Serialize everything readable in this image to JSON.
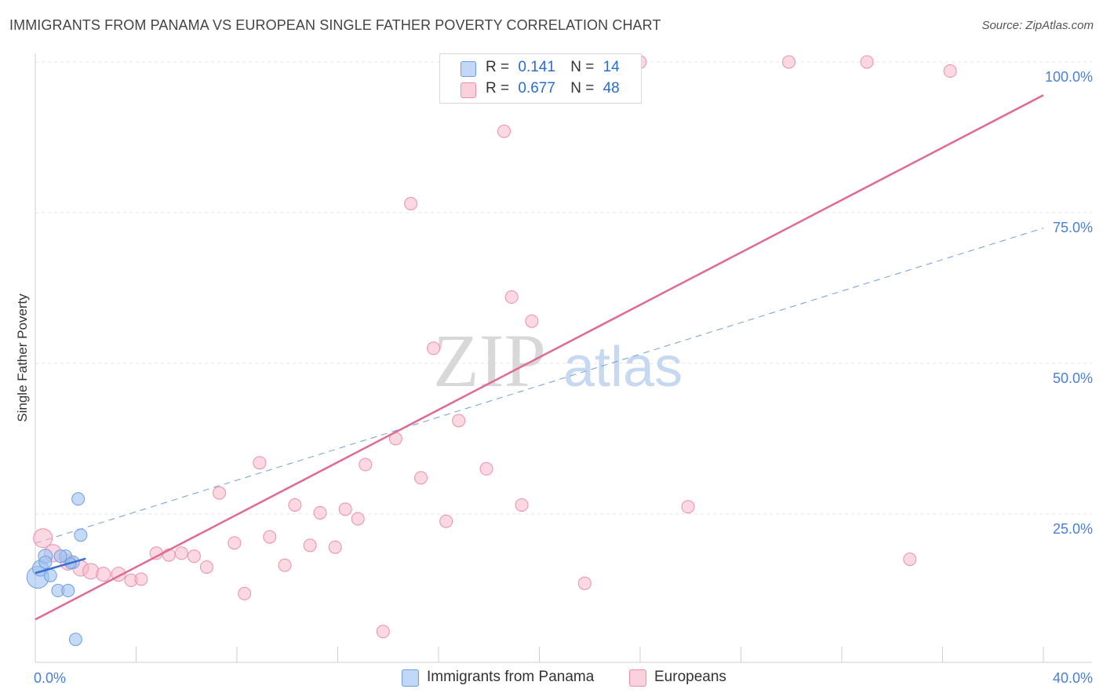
{
  "title": "IMMIGRANTS FROM PANAMA VS EUROPEAN SINGLE FATHER POVERTY CORRELATION CHART",
  "source": "Source: ZipAtlas.com",
  "watermark": {
    "zip": "ZIP",
    "atlas": "atlas"
  },
  "legend": {
    "r_label": "R =",
    "n_label": "N =",
    "panama": {
      "r": "0.141",
      "n": "14"
    },
    "europeans": {
      "r": "0.677",
      "n": "48"
    }
  },
  "chart_data": {
    "type": "scatter",
    "ylabel": "Single Father Poverty",
    "xlim": [
      0,
      40
    ],
    "ylim": [
      0,
      100
    ],
    "x_tick_labels": [
      "0.0%",
      "40.0%"
    ],
    "y_ticks": [
      25,
      50,
      75,
      100
    ],
    "y_tick_labels": [
      "25.0%",
      "50.0%",
      "75.0%",
      "100.0%"
    ],
    "grid": true,
    "colors": {
      "panama": "#9ec1f0",
      "panama_edge": "#6f9ee0",
      "panama_line": "#3a6fd0",
      "europeans": "#f7b8cb",
      "europeans_edge": "#ec8fad",
      "europeans_line": "#e06a92"
    },
    "series": [
      {
        "name": "Immigrants from Panama",
        "points": [
          [
            0.1,
            14.5,
            14
          ],
          [
            0.2,
            16,
            10
          ],
          [
            0.4,
            18,
            9
          ],
          [
            0.4,
            17,
            8
          ],
          [
            0.6,
            14.8,
            8
          ],
          [
            0.9,
            12.3,
            8
          ],
          [
            1.2,
            18,
            8
          ],
          [
            1.3,
            12.3,
            8
          ],
          [
            1.5,
            17,
            8
          ],
          [
            1.7,
            27.5,
            8
          ],
          [
            1.8,
            21.5,
            8
          ],
          [
            1.6,
            4.2,
            8
          ],
          [
            1.0,
            18,
            8
          ],
          [
            1.4,
            16.8,
            7
          ]
        ],
        "trend": {
          "x": [
            0,
            2.0
          ],
          "y": [
            15.2,
            17.6
          ],
          "dashed_x": [
            0,
            40
          ],
          "dashed_y": [
            15.2,
            67.5
          ]
        }
      },
      {
        "name": "Europeans",
        "points": [
          [
            0.3,
            21,
            12
          ],
          [
            0.7,
            18.5,
            11
          ],
          [
            1.3,
            17,
            10
          ],
          [
            1.8,
            16,
            10
          ],
          [
            2.2,
            15.5,
            10
          ],
          [
            2.7,
            15,
            9
          ],
          [
            3.3,
            15,
            9
          ],
          [
            3.8,
            14,
            8
          ],
          [
            4.2,
            14.2,
            8
          ],
          [
            4.8,
            18.5,
            8
          ],
          [
            5.3,
            18.2,
            8
          ],
          [
            5.8,
            18.5,
            8
          ],
          [
            6.3,
            18,
            8
          ],
          [
            6.8,
            16.2,
            8
          ],
          [
            7.3,
            28.5,
            8
          ],
          [
            7.9,
            20.2,
            8
          ],
          [
            8.3,
            11.8,
            8
          ],
          [
            8.9,
            33.5,
            8
          ],
          [
            9.3,
            21.2,
            8
          ],
          [
            9.9,
            16.5,
            8
          ],
          [
            10.3,
            26.5,
            8
          ],
          [
            10.9,
            19.8,
            8
          ],
          [
            11.3,
            25.2,
            8
          ],
          [
            11.9,
            19.5,
            8
          ],
          [
            12.3,
            25.8,
            8
          ],
          [
            12.8,
            24.2,
            8
          ],
          [
            13.1,
            33.2,
            8
          ],
          [
            13.8,
            5.5,
            8
          ],
          [
            14.3,
            37.5,
            8
          ],
          [
            14.9,
            76.5,
            8
          ],
          [
            15.3,
            31,
            8
          ],
          [
            15.8,
            52.5,
            8
          ],
          [
            16.3,
            23.8,
            8
          ],
          [
            16.8,
            40.5,
            8
          ],
          [
            17.9,
            32.5,
            8
          ],
          [
            18.6,
            88.5,
            8
          ],
          [
            18.9,
            61,
            8
          ],
          [
            19.3,
            26.5,
            8
          ],
          [
            19.7,
            57,
            8
          ],
          [
            20.9,
            100,
            8
          ],
          [
            21.8,
            13.5,
            8
          ],
          [
            24.0,
            100,
            8
          ],
          [
            25.9,
            26.2,
            8
          ],
          [
            29.9,
            100,
            8
          ],
          [
            33.0,
            100,
            8
          ],
          [
            36.3,
            98.5,
            8
          ],
          [
            34.7,
            17.5,
            8
          ],
          [
            20.2,
            100,
            7
          ]
        ],
        "trend": {
          "x": [
            0,
            40
          ],
          "y": [
            7.5,
            94.5
          ]
        }
      }
    ]
  }
}
